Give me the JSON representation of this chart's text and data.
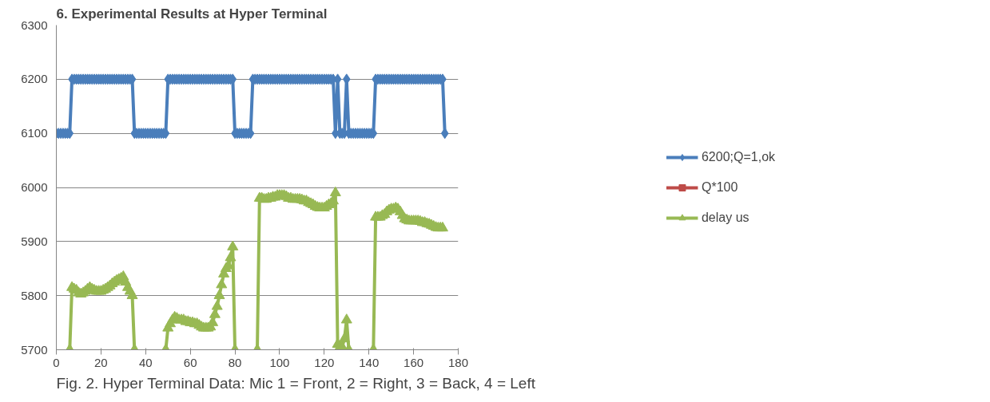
{
  "chart_data": {
    "type": "line",
    "title": "6. Experimental Results at Hyper Terminal",
    "x": [
      0,
      1,
      2,
      3,
      4,
      5,
      6,
      7,
      8,
      9,
      10,
      11,
      12,
      13,
      14,
      15,
      16,
      17,
      18,
      19,
      20,
      21,
      22,
      23,
      24,
      25,
      26,
      27,
      28,
      29,
      30,
      31,
      32,
      33,
      34,
      35,
      36,
      37,
      38,
      39,
      40,
      41,
      42,
      43,
      44,
      45,
      46,
      47,
      48,
      49,
      50,
      51,
      52,
      53,
      54,
      55,
      56,
      57,
      58,
      59,
      60,
      61,
      62,
      63,
      64,
      65,
      66,
      67,
      68,
      69,
      70,
      71,
      72,
      73,
      74,
      75,
      76,
      77,
      78,
      79,
      80,
      81,
      82,
      83,
      84,
      85,
      86,
      87,
      88,
      89,
      90,
      91,
      92,
      93,
      94,
      95,
      96,
      97,
      98,
      99,
      100,
      101,
      102,
      103,
      104,
      105,
      106,
      107,
      108,
      109,
      110,
      111,
      112,
      113,
      114,
      115,
      116,
      117,
      118,
      119,
      120,
      121,
      122,
      123,
      124,
      125,
      126,
      127,
      128,
      129,
      130,
      131,
      132,
      133,
      134,
      135,
      136,
      137,
      138,
      139,
      140,
      141,
      142,
      143,
      144,
      145,
      146,
      147,
      148,
      149,
      150,
      151,
      152,
      153,
      154,
      155,
      156,
      157,
      158,
      159,
      160,
      161,
      162,
      163,
      164,
      165,
      166,
      167,
      168,
      169,
      170,
      171,
      172,
      173,
      174
    ],
    "series": [
      {
        "name": "6200;Q=1,ok",
        "color": "#4a7ebb",
        "marker": "diamond",
        "values": [
          6100,
          6100,
          6100,
          6100,
          6100,
          6100,
          6100,
          6200,
          6200,
          6200,
          6200,
          6200,
          6200,
          6200,
          6200,
          6200,
          6200,
          6200,
          6200,
          6200,
          6200,
          6200,
          6200,
          6200,
          6200,
          6200,
          6200,
          6200,
          6200,
          6200,
          6200,
          6200,
          6200,
          6200,
          6200,
          6100,
          6100,
          6100,
          6100,
          6100,
          6100,
          6100,
          6100,
          6100,
          6100,
          6100,
          6100,
          6100,
          6100,
          6100,
          6200,
          6200,
          6200,
          6200,
          6200,
          6200,
          6200,
          6200,
          6200,
          6200,
          6200,
          6200,
          6200,
          6200,
          6200,
          6200,
          6200,
          6200,
          6200,
          6200,
          6200,
          6200,
          6200,
          6200,
          6200,
          6200,
          6200,
          6200,
          6200,
          6200,
          6100,
          6100,
          6100,
          6100,
          6100,
          6100,
          6100,
          6100,
          6200,
          6200,
          6200,
          6200,
          6200,
          6200,
          6200,
          6200,
          6200,
          6200,
          6200,
          6200,
          6200,
          6200,
          6200,
          6200,
          6200,
          6200,
          6200,
          6200,
          6200,
          6200,
          6200,
          6200,
          6200,
          6200,
          6200,
          6200,
          6200,
          6200,
          6200,
          6200,
          6200,
          6200,
          6200,
          6200,
          6200,
          6100,
          6200,
          6100,
          6100,
          6100,
          6200,
          6100,
          6100,
          6100,
          6100,
          6100,
          6100,
          6100,
          6100,
          6100,
          6100,
          6100,
          6100,
          6200,
          6200,
          6200,
          6200,
          6200,
          6200,
          6200,
          6200,
          6200,
          6200,
          6200,
          6200,
          6200,
          6200,
          6200,
          6200,
          6200,
          6200,
          6200,
          6200,
          6200,
          6200,
          6200,
          6200,
          6200,
          6200,
          6200,
          6200,
          6200,
          6200,
          6200,
          6100
        ]
      },
      {
        "name": "Q*100",
        "color": "#be4b48",
        "marker": "square",
        "values": [
          null,
          null,
          null,
          null,
          null,
          null,
          null,
          null,
          null,
          null,
          null,
          null,
          null,
          null,
          null,
          null,
          null,
          null,
          null,
          null,
          null,
          null,
          null,
          null,
          null,
          null,
          null,
          null,
          null,
          null,
          null,
          null,
          null,
          null,
          null,
          null,
          null,
          null,
          null,
          null,
          null,
          null,
          null,
          null,
          null,
          null,
          null,
          null,
          null,
          null,
          null,
          null,
          null,
          null,
          null,
          null,
          null,
          null,
          null,
          null,
          null,
          null,
          null,
          null,
          null,
          null,
          null,
          null,
          null,
          null,
          null,
          null,
          null,
          null,
          null,
          null,
          null,
          null,
          null,
          null,
          null,
          null,
          null,
          null,
          null,
          null,
          null,
          null,
          null,
          null,
          null,
          null,
          null,
          null,
          null,
          null,
          null,
          null,
          null,
          null,
          null,
          null,
          null,
          null,
          null,
          null,
          null,
          null,
          null,
          null,
          null,
          null,
          null,
          null,
          null,
          null,
          null,
          null,
          null,
          null,
          null,
          null,
          null,
          null,
          null,
          null,
          null,
          null,
          null,
          null,
          null,
          null,
          null,
          null,
          null,
          null,
          null,
          null,
          null,
          null,
          null,
          null,
          null,
          null,
          null,
          null,
          null,
          null,
          null,
          null,
          null,
          null,
          null,
          null,
          null,
          null,
          null,
          null,
          null,
          null,
          null,
          null,
          null,
          null,
          null,
          null,
          null,
          null,
          null,
          null,
          null,
          null,
          null,
          null,
          null
        ]
      },
      {
        "name": "delay us",
        "color": "#98b954",
        "marker": "triangle",
        "values": [
          null,
          null,
          null,
          null,
          null,
          null,
          5700,
          5815,
          5812,
          5810,
          5805,
          5803,
          5805,
          5808,
          5812,
          5815,
          5812,
          5810,
          5808,
          5808,
          5808,
          5810,
          5812,
          5815,
          5818,
          5822,
          5825,
          5828,
          5830,
          5832,
          5835,
          5825,
          5815,
          5808,
          5800,
          5700,
          null,
          null,
          null,
          null,
          null,
          null,
          null,
          null,
          null,
          null,
          null,
          null,
          null,
          5700,
          5740,
          5748,
          5755,
          5760,
          5758,
          5755,
          5755,
          5755,
          5752,
          5752,
          5750,
          5750,
          5748,
          5748,
          5745,
          5742,
          5740,
          5740,
          5740,
          5742,
          5750,
          5765,
          5780,
          5800,
          5820,
          5840,
          5850,
          5855,
          5870,
          5890,
          5700,
          null,
          null,
          null,
          null,
          null,
          null,
          null,
          null,
          null,
          5700,
          5980,
          5980,
          5978,
          5978,
          5980,
          5980,
          5982,
          5982,
          5985,
          5985,
          5985,
          5985,
          5983,
          5980,
          5980,
          5978,
          5978,
          5978,
          5978,
          5977,
          5975,
          5975,
          5972,
          5970,
          5968,
          5965,
          5963,
          5962,
          5962,
          5962,
          5965,
          5968,
          5970,
          5975,
          5990,
          5710,
          5705,
          5705,
          5720,
          5755,
          5700,
          null,
          null,
          null,
          null,
          null,
          null,
          null,
          null,
          null,
          null,
          5700,
          5945,
          5945,
          5945,
          5948,
          5950,
          5955,
          5958,
          5960,
          5960,
          5962,
          5960,
          5955,
          5948,
          5942,
          5940,
          5938,
          5938,
          5938,
          5938,
          5938,
          5937,
          5935,
          5935,
          5933,
          5932,
          5930,
          5928,
          5926,
          5925,
          5925,
          5925,
          null
        ]
      }
    ],
    "xlim": [
      0,
      180
    ],
    "ylim": [
      5700,
      6300
    ],
    "xticks": [
      0,
      20,
      40,
      60,
      80,
      100,
      120,
      140,
      160,
      180
    ],
    "yticks": [
      5700,
      5800,
      5900,
      6000,
      6100,
      6200,
      6300
    ],
    "grid": "y",
    "legend": "right",
    "line_style": "solid",
    "annotations": [
      "Fig. 2. Hyper Terminal Data:  Mic 1 = Front, 2 = Right, 3 = Back, 4 = Left"
    ]
  }
}
